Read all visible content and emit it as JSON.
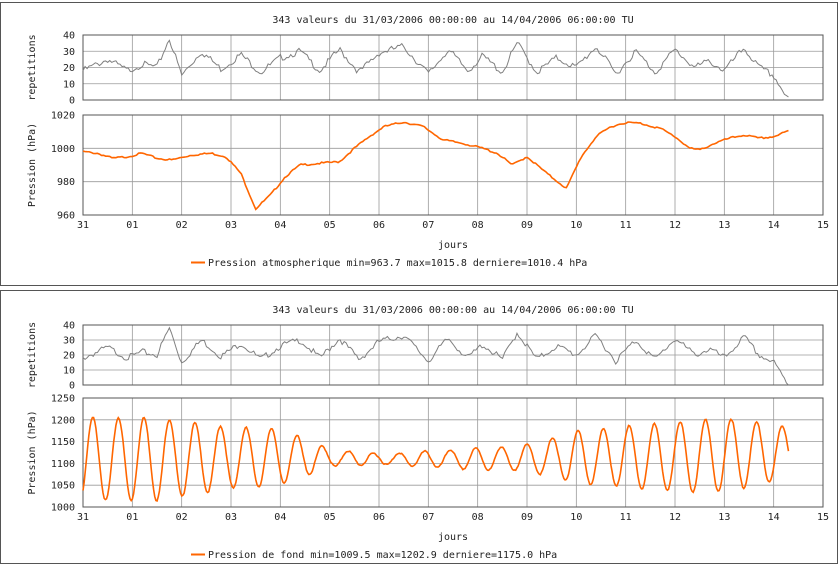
{
  "chart_data": [
    {
      "type": "line",
      "title": "343 valeurs du 31/03/2006 00:00:00 au 14/04/2006 06:00:00 TU",
      "xlabel": "jours",
      "ylabel_top": "repetitions",
      "ylabel_bottom": "Pression (hPa)",
      "x_ticks": [
        "31",
        "01",
        "02",
        "03",
        "04",
        "05",
        "06",
        "07",
        "08",
        "09",
        "10",
        "11",
        "12",
        "13",
        "14",
        "15"
      ],
      "xlim": [
        0,
        15
      ],
      "top_axis": {
        "ylim": [
          0,
          40
        ],
        "ticks": [
          "0",
          "10",
          "20",
          "30",
          "40"
        ]
      },
      "bottom_axis": {
        "ylim": [
          960,
          1020
        ],
        "ticks": [
          "960",
          "980",
          "1000",
          "1020"
        ]
      },
      "series": [
        {
          "role": "repetitions",
          "color": "#808080",
          "x": [
            0,
            0.5,
            0.9,
            1.2,
            1.5,
            1.75,
            2.0,
            2.4,
            2.8,
            3.2,
            3.6,
            4.0,
            4.4,
            4.8,
            5.2,
            5.6,
            6.0,
            6.5,
            7.0,
            7.4,
            7.8,
            8.1,
            8.5,
            8.8,
            9.2,
            9.6,
            10.0,
            10.4,
            10.8,
            11.2,
            11.6,
            12.0,
            12.4,
            12.7,
            13.0,
            13.4,
            13.7,
            14.0,
            14.3
          ],
          "y": [
            18,
            25,
            18,
            22,
            20,
            38,
            15,
            30,
            19,
            28,
            17,
            26,
            30,
            18,
            31,
            17,
            29,
            33,
            16,
            31,
            18,
            27,
            17,
            35,
            17,
            26,
            20,
            33,
            16,
            30,
            17,
            31,
            20,
            24,
            18,
            32,
            20,
            15,
            0
          ]
        },
        {
          "name": "Pression atmospherique min=963.7 max=1015.8 derniere=1010.4 hPa",
          "color": "#ff6600",
          "x": [
            0,
            0.3,
            0.6,
            0.9,
            1.2,
            1.5,
            1.8,
            2.2,
            2.6,
            2.9,
            3.2,
            3.5,
            3.8,
            4.1,
            4.4,
            4.8,
            5.2,
            5.5,
            5.8,
            6.1,
            6.5,
            6.9,
            7.3,
            7.7,
            8.1,
            8.4,
            8.7,
            9.0,
            9.4,
            9.8,
            10.1,
            10.4,
            10.7,
            11.0,
            11.3,
            11.7,
            12.0,
            12.3,
            12.5,
            12.8,
            13.1,
            13.4,
            13.7,
            14.0,
            14.3
          ],
          "y": [
            998,
            997,
            994,
            995,
            997,
            994,
            993,
            996,
            997,
            995,
            985,
            963.7,
            972,
            983,
            990,
            991,
            992,
            1000,
            1007,
            1013,
            1015.8,
            1013,
            1005,
            1003,
            1000,
            997,
            990,
            995,
            985,
            976,
            995,
            1007,
            1013,
            1015.5,
            1015,
            1012,
            1007,
            1000,
            999,
            1003,
            1006,
            1008,
            1006,
            1007,
            1010.4
          ]
        }
      ]
    },
    {
      "type": "line",
      "title": "343 valeurs du 31/03/2006 00:00:00 au 14/04/2006 06:00:00 TU",
      "xlabel": "jours",
      "ylabel_top": "repetitions",
      "ylabel_bottom": "Pression (hPa)",
      "x_ticks": [
        "31",
        "01",
        "02",
        "03",
        "04",
        "05",
        "06",
        "07",
        "08",
        "09",
        "10",
        "11",
        "12",
        "13",
        "14",
        "15"
      ],
      "xlim": [
        0,
        15
      ],
      "top_axis": {
        "ylim": [
          0,
          40
        ],
        "ticks": [
          "0",
          "10",
          "20",
          "30",
          "40"
        ]
      },
      "bottom_axis": {
        "ylim": [
          1000,
          1250
        ],
        "ticks": [
          "1000",
          "1050",
          "1100",
          "1150",
          "1200",
          "1250"
        ]
      },
      "series": [
        {
          "role": "repetitions",
          "color": "#808080",
          "x": [
            0,
            0.5,
            0.9,
            1.2,
            1.5,
            1.75,
            2.0,
            2.4,
            2.8,
            3.2,
            3.6,
            4.0,
            4.4,
            4.8,
            5.2,
            5.6,
            6.0,
            6.5,
            7.0,
            7.4,
            7.8,
            8.1,
            8.5,
            8.8,
            9.2,
            9.6,
            10.0,
            10.4,
            10.8,
            11.2,
            11.6,
            12.0,
            12.4,
            12.7,
            13.0,
            13.4,
            13.7,
            14.0,
            14.3
          ],
          "y": [
            18,
            25,
            18,
            22,
            20,
            38,
            15,
            30,
            19,
            28,
            17,
            26,
            30,
            18,
            31,
            17,
            29,
            33,
            16,
            31,
            18,
            27,
            17,
            35,
            17,
            26,
            20,
            33,
            16,
            30,
            17,
            31,
            20,
            24,
            18,
            32,
            20,
            15,
            0
          ]
        },
        {
          "name": "Pression de fond min=1009.5 max=1202.9 derniere=1175.0 hPa",
          "color": "#ff6600",
          "tidal": {
            "period_days": 0.5175,
            "phase_days": 0.2,
            "mean": [
              [
                0,
                1110
              ],
              [
                2,
                1110
              ],
              [
                4,
                1115
              ],
              [
                6,
                1110
              ],
              [
                8,
                1110
              ],
              [
                10,
                1115
              ],
              [
                12,
                1115
              ],
              [
                14.3,
                1125
              ]
            ],
            "amplitude": [
              [
                0,
                95
              ],
              [
                1.5,
                95
              ],
              [
                3,
                70
              ],
              [
                4,
                65
              ],
              [
                5,
                20
              ],
              [
                6,
                12
              ],
              [
                7,
                18
              ],
              [
                8,
                25
              ],
              [
                9,
                30
              ],
              [
                10,
                60
              ],
              [
                11,
                70
              ],
              [
                12,
                80
              ],
              [
                13,
                85
              ],
              [
                14.3,
                60
              ]
            ]
          }
        }
      ]
    }
  ]
}
